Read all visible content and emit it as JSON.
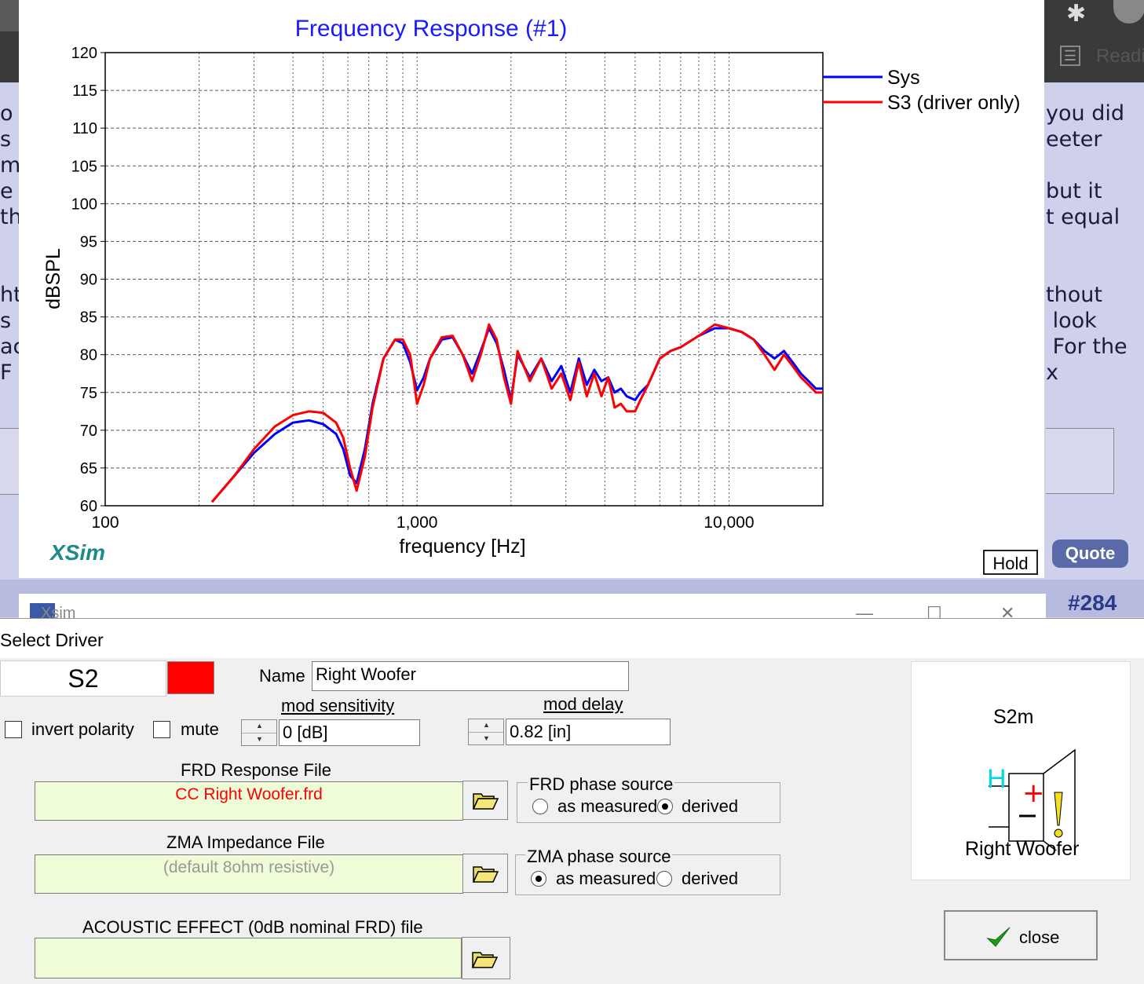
{
  "background_page": {
    "left_text_lines": [
      "o",
      "s a",
      "m",
      "e y",
      "th",
      "",
      "",
      "ht",
      "s",
      "ac",
      "F v"
    ],
    "right_text_lines": [
      "you did",
      "eeter",
      "",
      "but it",
      "t equal",
      "",
      "",
      "thout",
      " look",
      " For the",
      "x"
    ],
    "reader_label": "Readi",
    "quote_label": "Quote",
    "post_number": "#284"
  },
  "chart_window": {
    "logo": "XSim",
    "hold_label": "Hold"
  },
  "chart_data": {
    "type": "line",
    "title": "Frequency Response (#1)",
    "xlabel": "frequency [Hz]",
    "ylabel": "dBSPL",
    "xscale": "log",
    "xlim": [
      100,
      20000
    ],
    "ylim": [
      60,
      120
    ],
    "x_tick_labels": [
      "100",
      "1,000",
      "10,000"
    ],
    "y_ticks": [
      60,
      65,
      70,
      75,
      80,
      85,
      90,
      95,
      100,
      105,
      110,
      115,
      120
    ],
    "grid": true,
    "legend_position": "right of plot, top",
    "series": [
      {
        "name": "Sys",
        "color": "#0000ff",
        "x": [
          220,
          260,
          300,
          350,
          400,
          450,
          500,
          550,
          580,
          610,
          640,
          680,
          720,
          780,
          850,
          900,
          950,
          1000,
          1050,
          1100,
          1200,
          1300,
          1400,
          1500,
          1600,
          1700,
          1800,
          1900,
          2000,
          2100,
          2300,
          2500,
          2700,
          2900,
          3100,
          3300,
          3500,
          3700,
          3900,
          4100,
          4300,
          4500,
          4700,
          5000,
          5200,
          5500,
          6000,
          6500,
          7000,
          8000,
          9000,
          10000,
          11000,
          12000,
          13000,
          14000,
          15000,
          16000,
          17000,
          18000,
          19000,
          20000
        ],
        "y": [
          60.5,
          64,
          67,
          69.5,
          71,
          71.3,
          70.8,
          69.5,
          67.5,
          64,
          63,
          67.5,
          73.5,
          79.5,
          82,
          81.5,
          79,
          75.3,
          77,
          79.5,
          82,
          82.3,
          80,
          77.5,
          80.5,
          83.5,
          81.5,
          78,
          74,
          80,
          77,
          79.5,
          76.5,
          78.5,
          75,
          79.5,
          76,
          78,
          76.5,
          77,
          75,
          75.5,
          74.5,
          74,
          75,
          76,
          79.5,
          80.5,
          81,
          82.5,
          83.5,
          83.5,
          83,
          82,
          80.5,
          79.5,
          80.5,
          79,
          77.5,
          76.5,
          75.5,
          75.5
        ]
      },
      {
        "name": "S3 (driver only)",
        "color": "#ff0000",
        "x": [
          220,
          260,
          300,
          350,
          400,
          450,
          500,
          550,
          580,
          610,
          640,
          680,
          720,
          780,
          850,
          900,
          950,
          1000,
          1050,
          1100,
          1200,
          1300,
          1400,
          1500,
          1600,
          1700,
          1800,
          1900,
          2000,
          2100,
          2300,
          2500,
          2700,
          2900,
          3100,
          3300,
          3500,
          3700,
          3900,
          4100,
          4300,
          4500,
          4700,
          5000,
          5200,
          5500,
          6000,
          6500,
          7000,
          8000,
          9000,
          10000,
          11000,
          12000,
          13000,
          14000,
          15000,
          16000,
          17000,
          18000,
          19000,
          20000
        ],
        "y": [
          60.5,
          64,
          67.5,
          70.5,
          72,
          72.5,
          72.3,
          71,
          69,
          65,
          62,
          66.5,
          73,
          79.5,
          82,
          82,
          80,
          73.5,
          76,
          79.5,
          82.3,
          82.5,
          80,
          76.5,
          80,
          84,
          82,
          77,
          73.5,
          80.5,
          76.5,
          79.5,
          75.5,
          77.5,
          74,
          79,
          74.5,
          77.5,
          74.5,
          77,
          73,
          73.5,
          72.5,
          72.5,
          74,
          76,
          79.5,
          80.5,
          81,
          82.5,
          84,
          83.5,
          83,
          82,
          80,
          78,
          80,
          78.5,
          77,
          76,
          75,
          75
        ]
      }
    ]
  },
  "xsim_window": {
    "title": "Xsim",
    "minimize_glyph": "—",
    "maximize_glyph": "☐",
    "close_glyph": "✕"
  },
  "select_driver_dialog": {
    "title": "Select Driver",
    "driver_id": "S2",
    "driver_color": "#ff0000",
    "name_label": "Name",
    "name_value": "Right Woofer",
    "invert_polarity_label": "invert polarity",
    "mute_label": "mute",
    "mod_sensitivity_label": "mod sensitivity",
    "mod_sensitivity_value": "0 [dB]",
    "mod_delay_label": "mod delay",
    "mod_delay_value": "0.82 [in]",
    "frd_file_label": "FRD Response File",
    "frd_file_value": "CC Right Woofer.frd",
    "zma_file_label": "ZMA Impedance File",
    "zma_file_value": "(default 8ohm resistive)",
    "acoustic_file_label": "ACOUSTIC EFFECT (0dB nominal FRD) file",
    "acoustic_file_value": "",
    "frd_phase_group": "FRD phase source",
    "frd_phase_options": [
      "as measured",
      "derived"
    ],
    "frd_phase_selected": "derived",
    "zma_phase_group": "ZMA phase source",
    "zma_phase_options": [
      "as measured",
      "derived"
    ],
    "zma_phase_selected": "as measured",
    "preview_id": "S2m",
    "preview_h_label": "H",
    "preview_name": "Right Woofer",
    "close_label": "close"
  }
}
